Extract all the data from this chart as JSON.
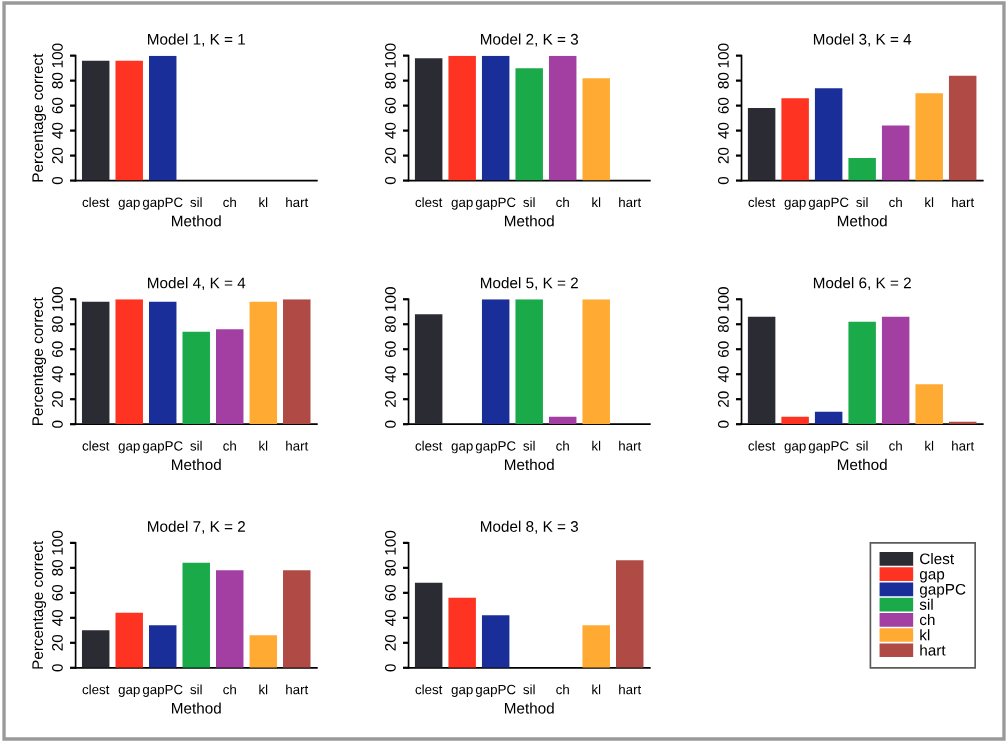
{
  "chart_data": [
    {
      "type": "bar",
      "title": "Model 1, K = 1",
      "xlabel": "Method",
      "ylabel": "Percentage correct",
      "categories": [
        "clest",
        "gap",
        "gapPC",
        "sil",
        "ch",
        "kl",
        "hart"
      ],
      "values": [
        96,
        96,
        100,
        0,
        0,
        0,
        0
      ],
      "colors": [
        "#2b2b33",
        "#ff3322",
        "#1a2e99",
        "#1aaa4a",
        "#a33fa3",
        "#ffaa33",
        "#b04a44"
      ],
      "ylim": [
        0,
        100
      ],
      "yticks": [
        0,
        20,
        40,
        60,
        80,
        100
      ]
    },
    {
      "type": "bar",
      "title": "Model 2, K = 3",
      "xlabel": "Method",
      "categories": [
        "clest",
        "gap",
        "gapPC",
        "sil",
        "ch",
        "kl",
        "hart"
      ],
      "values": [
        98,
        100,
        100,
        90,
        100,
        82,
        0
      ],
      "colors": [
        "#2b2b33",
        "#ff3322",
        "#1a2e99",
        "#1aaa4a",
        "#a33fa3",
        "#ffaa33",
        "#b04a44"
      ],
      "ylim": [
        0,
        100
      ],
      "yticks": [
        0,
        20,
        40,
        60,
        80,
        100
      ]
    },
    {
      "type": "bar",
      "title": "Model 3, K = 4",
      "xlabel": "Method",
      "categories": [
        "clest",
        "gap",
        "gapPC",
        "sil",
        "ch",
        "kl",
        "hart"
      ],
      "values": [
        58,
        66,
        74,
        18,
        44,
        70,
        84
      ],
      "colors": [
        "#2b2b33",
        "#ff3322",
        "#1a2e99",
        "#1aaa4a",
        "#a33fa3",
        "#ffaa33",
        "#b04a44"
      ],
      "ylim": [
        0,
        100
      ],
      "yticks": [
        0,
        20,
        40,
        60,
        80,
        100
      ]
    },
    {
      "type": "bar",
      "title": "Model 4, K = 4",
      "xlabel": "Method",
      "ylabel": "Percentage correct",
      "categories": [
        "clest",
        "gap",
        "gapPC",
        "sil",
        "ch",
        "kl",
        "hart"
      ],
      "values": [
        98,
        100,
        98,
        74,
        76,
        98,
        100
      ],
      "colors": [
        "#2b2b33",
        "#ff3322",
        "#1a2e99",
        "#1aaa4a",
        "#a33fa3",
        "#ffaa33",
        "#b04a44"
      ],
      "ylim": [
        0,
        100
      ],
      "yticks": [
        0,
        20,
        40,
        60,
        80,
        100
      ]
    },
    {
      "type": "bar",
      "title": "Model 5, K = 2",
      "xlabel": "Method",
      "categories": [
        "clest",
        "gap",
        "gapPC",
        "sil",
        "ch",
        "kl",
        "hart"
      ],
      "values": [
        88,
        0,
        100,
        100,
        6,
        100,
        0
      ],
      "colors": [
        "#2b2b33",
        "#ff3322",
        "#1a2e99",
        "#1aaa4a",
        "#a33fa3",
        "#ffaa33",
        "#b04a44"
      ],
      "ylim": [
        0,
        100
      ],
      "yticks": [
        0,
        20,
        40,
        60,
        80,
        100
      ]
    },
    {
      "type": "bar",
      "title": "Model 6, K = 2",
      "xlabel": "Method",
      "categories": [
        "clest",
        "gap",
        "gapPC",
        "sil",
        "ch",
        "kl",
        "hart"
      ],
      "values": [
        86,
        6,
        10,
        82,
        86,
        32,
        2
      ],
      "colors": [
        "#2b2b33",
        "#ff3322",
        "#1a2e99",
        "#1aaa4a",
        "#a33fa3",
        "#ffaa33",
        "#b04a44"
      ],
      "ylim": [
        0,
        100
      ],
      "yticks": [
        0,
        20,
        40,
        60,
        80,
        100
      ]
    },
    {
      "type": "bar",
      "title": "Model 7, K = 2",
      "xlabel": "Method",
      "ylabel": "Percentage correct",
      "categories": [
        "clest",
        "gap",
        "gapPC",
        "sil",
        "ch",
        "kl",
        "hart"
      ],
      "values": [
        30,
        44,
        34,
        84,
        78,
        26,
        78
      ],
      "colors": [
        "#2b2b33",
        "#ff3322",
        "#1a2e99",
        "#1aaa4a",
        "#a33fa3",
        "#ffaa33",
        "#b04a44"
      ],
      "ylim": [
        0,
        100
      ],
      "yticks": [
        0,
        20,
        40,
        60,
        80,
        100
      ]
    },
    {
      "type": "bar",
      "title": "Model 8, K = 3",
      "xlabel": "Method",
      "categories": [
        "clest",
        "gap",
        "gapPC",
        "sil",
        "ch",
        "kl",
        "hart"
      ],
      "values": [
        68,
        56,
        42,
        0,
        0,
        34,
        86
      ],
      "colors": [
        "#2b2b33",
        "#ff3322",
        "#1a2e99",
        "#1aaa4a",
        "#a33fa3",
        "#ffaa33",
        "#b04a44"
      ],
      "ylim": [
        0,
        100
      ],
      "yticks": [
        0,
        20,
        40,
        60,
        80,
        100
      ]
    },
    {
      "type": "other",
      "categories": [
        "Clest",
        "gap",
        "gapPC",
        "sil",
        "ch",
        "kl",
        "hart"
      ],
      "colors": [
        "#2b2b33",
        "#ff3322",
        "#1a2e99",
        "#1aaa4a",
        "#a33fa3",
        "#ffaa33",
        "#b04a44"
      ]
    }
  ]
}
